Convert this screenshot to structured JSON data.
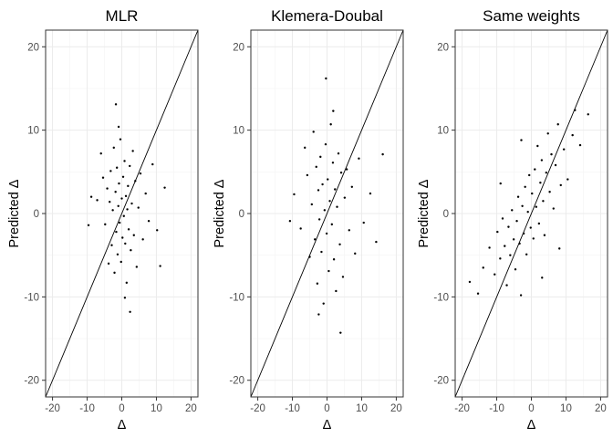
{
  "chart_data": [
    {
      "type": "scatter",
      "title": "MLR",
      "xlabel": "Δ",
      "ylabel": "Predicted Δ",
      "xlim": [
        -22,
        22
      ],
      "ylim": [
        -22,
        22
      ],
      "xticks": [
        "-20",
        "-10",
        "0",
        "10",
        "20"
      ],
      "yticks": [
        "-20",
        "-10",
        "0",
        "10",
        "20"
      ],
      "grid": true,
      "reference_line": "y = x",
      "points": [
        [
          -8.8,
          2.0
        ],
        [
          -7.1,
          1.6
        ],
        [
          -6.0,
          7.2
        ],
        [
          -5.4,
          4.3
        ],
        [
          -4.8,
          -1.3
        ],
        [
          -4.2,
          3.0
        ],
        [
          -3.8,
          -6.0
        ],
        [
          -3.5,
          1.4
        ],
        [
          -3.2,
          5.1
        ],
        [
          -2.9,
          -3.8
        ],
        [
          -2.6,
          0.4
        ],
        [
          -2.3,
          7.9
        ],
        [
          -2.1,
          -7.1
        ],
        [
          -1.8,
          2.6
        ],
        [
          -1.6,
          -2.2
        ],
        [
          -1.4,
          5.5
        ],
        [
          -1.2,
          -4.9
        ],
        [
          -1.0,
          0.9
        ],
        [
          -0.8,
          3.6
        ],
        [
          -0.6,
          -1.1
        ],
        [
          -0.4,
          8.9
        ],
        [
          -0.2,
          -5.8
        ],
        [
          0.0,
          1.8
        ],
        [
          0.2,
          -2.9
        ],
        [
          0.4,
          4.4
        ],
        [
          0.6,
          -0.3
        ],
        [
          0.8,
          6.3
        ],
        [
          1.0,
          -3.6
        ],
        [
          1.2,
          2.1
        ],
        [
          1.4,
          -8.3
        ],
        [
          1.6,
          0.5
        ],
        [
          1.8,
          3.3
        ],
        [
          2.0,
          -1.9
        ],
        [
          2.3,
          5.7
        ],
        [
          2.6,
          -4.4
        ],
        [
          2.9,
          1.2
        ],
        [
          3.2,
          7.5
        ],
        [
          3.5,
          -2.6
        ],
        [
          3.9,
          3.9
        ],
        [
          4.3,
          -6.4
        ],
        [
          4.8,
          0.7
        ],
        [
          5.4,
          4.8
        ],
        [
          6.1,
          -3.1
        ],
        [
          6.9,
          2.4
        ],
        [
          7.8,
          -0.9
        ],
        [
          8.9,
          5.9
        ],
        [
          10.2,
          -2.0
        ],
        [
          12.4,
          3.1
        ],
        [
          -1.7,
          13.1
        ],
        [
          2.4,
          -11.8
        ],
        [
          -9.6,
          -1.4
        ],
        [
          11.1,
          -6.3
        ],
        [
          -0.9,
          10.4
        ],
        [
          0.9,
          -10.1
        ]
      ]
    },
    {
      "type": "scatter",
      "title": "Klemera-Doubal",
      "xlabel": "Δ",
      "ylabel": "Predicted Δ",
      "xlim": [
        -22,
        22
      ],
      "ylim": [
        -22,
        22
      ],
      "xticks": [
        "-20",
        "-10",
        "0",
        "10",
        "20"
      ],
      "yticks": [
        "-20",
        "-10",
        "0",
        "10",
        "20"
      ],
      "grid": true,
      "reference_line": "y = x",
      "points": [
        [
          -9.5,
          2.3
        ],
        [
          -7.6,
          -1.8
        ],
        [
          -6.4,
          7.9
        ],
        [
          -5.7,
          4.6
        ],
        [
          -5.0,
          -5.2
        ],
        [
          -4.4,
          1.1
        ],
        [
          -3.9,
          9.8
        ],
        [
          -3.5,
          -3.1
        ],
        [
          -3.1,
          5.6
        ],
        [
          -2.8,
          -8.4
        ],
        [
          -2.5,
          2.8
        ],
        [
          -2.2,
          -0.7
        ],
        [
          -1.9,
          6.8
        ],
        [
          -1.6,
          -4.6
        ],
        [
          -1.3,
          3.5
        ],
        [
          -1.0,
          -10.8
        ],
        [
          -0.7,
          0.4
        ],
        [
          -0.4,
          8.3
        ],
        [
          -0.1,
          -2.4
        ],
        [
          0.2,
          4.1
        ],
        [
          0.5,
          -6.9
        ],
        [
          0.8,
          1.5
        ],
        [
          1.1,
          10.7
        ],
        [
          1.4,
          -1.3
        ],
        [
          1.7,
          6.1
        ],
        [
          2.0,
          -5.5
        ],
        [
          2.3,
          2.9
        ],
        [
          2.6,
          -9.3
        ],
        [
          2.9,
          0.8
        ],
        [
          3.3,
          7.2
        ],
        [
          3.7,
          -3.7
        ],
        [
          4.1,
          4.9
        ],
        [
          4.6,
          -7.6
        ],
        [
          5.1,
          1.9
        ],
        [
          5.7,
          5.3
        ],
        [
          6.4,
          -2.0
        ],
        [
          7.2,
          3.2
        ],
        [
          8.1,
          -4.8
        ],
        [
          9.2,
          6.6
        ],
        [
          10.6,
          -1.1
        ],
        [
          12.5,
          2.4
        ],
        [
          16.1,
          7.1
        ],
        [
          -0.3,
          16.2
        ],
        [
          3.9,
          -14.3
        ],
        [
          -2.4,
          -12.1
        ],
        [
          1.8,
          12.3
        ],
        [
          -10.7,
          -0.9
        ],
        [
          14.2,
          -3.4
        ]
      ]
    },
    {
      "type": "scatter",
      "title": "Same weights",
      "xlabel": "Δ",
      "ylabel": "Predicted Δ",
      "xlim": [
        -22,
        22
      ],
      "ylim": [
        -22,
        22
      ],
      "xticks": [
        "-20",
        "-10",
        "0",
        "10",
        "20"
      ],
      "yticks": [
        "-20",
        "-10",
        "0",
        "10",
        "20"
      ],
      "grid": true,
      "reference_line": "y = x",
      "points": [
        [
          -17.8,
          -8.2
        ],
        [
          -13.9,
          -6.5
        ],
        [
          -12.1,
          -4.1
        ],
        [
          -10.6,
          -7.3
        ],
        [
          -9.8,
          -2.2
        ],
        [
          -9.0,
          -5.4
        ],
        [
          -8.3,
          -0.6
        ],
        [
          -7.7,
          -3.9
        ],
        [
          -7.1,
          -8.6
        ],
        [
          -6.6,
          -1.6
        ],
        [
          -6.1,
          -5.0
        ],
        [
          -5.6,
          0.4
        ],
        [
          -5.1,
          -3.1
        ],
        [
          -4.6,
          -6.7
        ],
        [
          -4.2,
          -0.9
        ],
        [
          -3.8,
          2.0
        ],
        [
          -3.4,
          -3.6
        ],
        [
          -3.0,
          -9.8
        ],
        [
          -2.6,
          0.9
        ],
        [
          -2.2,
          -2.4
        ],
        [
          -1.8,
          3.2
        ],
        [
          -1.4,
          -4.9
        ],
        [
          -1.0,
          0.2
        ],
        [
          -0.6,
          4.6
        ],
        [
          -0.2,
          -1.7
        ],
        [
          0.2,
          2.4
        ],
        [
          0.6,
          -3.0
        ],
        [
          1.0,
          5.3
        ],
        [
          1.4,
          0.8
        ],
        [
          1.8,
          8.1
        ],
        [
          2.2,
          -1.2
        ],
        [
          2.6,
          3.7
        ],
        [
          3.0,
          6.4
        ],
        [
          3.4,
          1.5
        ],
        [
          3.8,
          -2.6
        ],
        [
          4.3,
          4.9
        ],
        [
          4.8,
          9.6
        ],
        [
          5.3,
          2.6
        ],
        [
          5.8,
          7.1
        ],
        [
          6.4,
          0.6
        ],
        [
          7.0,
          5.8
        ],
        [
          7.7,
          10.7
        ],
        [
          8.5,
          3.4
        ],
        [
          9.4,
          7.7
        ],
        [
          10.5,
          4.1
        ],
        [
          11.9,
          9.4
        ],
        [
          14.1,
          8.2
        ],
        [
          16.4,
          11.9
        ],
        [
          -8.9,
          3.6
        ],
        [
          8.1,
          -4.2
        ],
        [
          -15.4,
          -9.6
        ],
        [
          12.6,
          12.4
        ],
        [
          -2.9,
          8.8
        ],
        [
          3.1,
          -7.7
        ]
      ]
    }
  ]
}
